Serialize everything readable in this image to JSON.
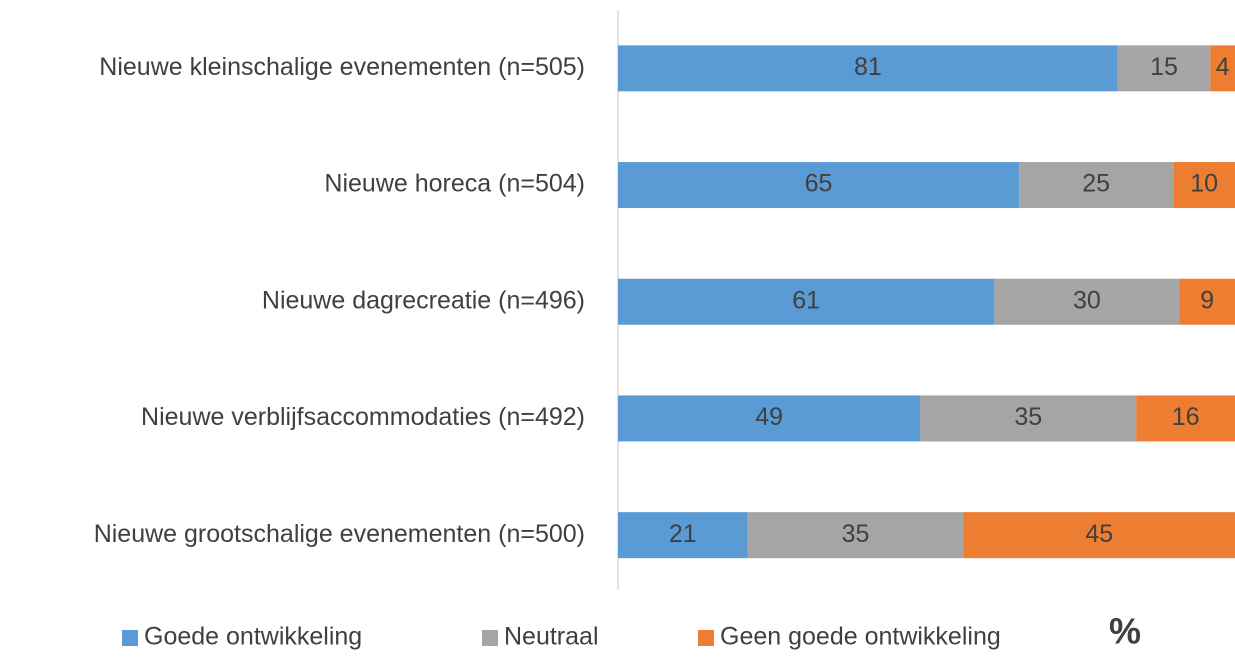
{
  "chart_data": {
    "type": "stacked-bar-horizontal",
    "categories": [
      "Nieuwe kleinschalige evenementen (n=505)",
      "Nieuwe horeca (n=504)",
      "Nieuwe dagrecreatie (n=496)",
      "Nieuwe verblijfsaccommodaties (n=492)",
      "Nieuwe grootschalige evenementen (n=500)"
    ],
    "series": [
      {
        "name": "Goede ontwikkeling",
        "color": "#5b9bd5",
        "values": [
          81,
          65,
          61,
          49,
          21
        ]
      },
      {
        "name": "Neutraal",
        "color": "#a5a5a5",
        "values": [
          15,
          25,
          30,
          35,
          35
        ]
      },
      {
        "name": "Geen goede ontwikkeling",
        "color": "#ed7d31",
        "values": [
          4,
          10,
          9,
          16,
          45
        ]
      }
    ],
    "xlim": [
      0,
      100
    ],
    "xlabel": "%",
    "legend": "bottom"
  }
}
